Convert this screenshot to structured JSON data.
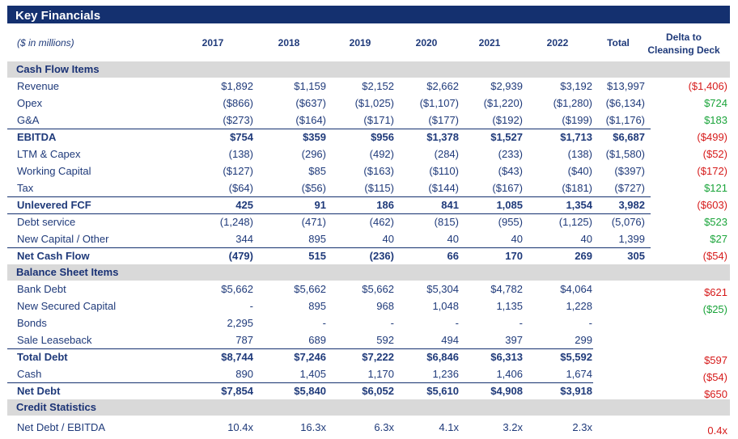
{
  "title": "Key Financials",
  "header": {
    "units": "($ in millions)",
    "years": [
      "2017",
      "2018",
      "2019",
      "2020",
      "2021",
      "2022"
    ],
    "total": "Total",
    "delta_line1": "Delta to",
    "delta_line2": "Cleansing Deck"
  },
  "cash_flow": {
    "heading": "Cash Flow Items",
    "rows": [
      {
        "label": "Revenue",
        "values": [
          "$1,892",
          "$1,159",
          "$2,152",
          "$2,662",
          "$2,939",
          "$3,192"
        ],
        "total": "$13,997",
        "delta": "($1,406)",
        "delta_sign": "neg"
      },
      {
        "label": "Opex",
        "values": [
          "($866)",
          "($637)",
          "($1,025)",
          "($1,107)",
          "($1,220)",
          "($1,280)"
        ],
        "total": "($6,134)",
        "delta": "$724",
        "delta_sign": "pos"
      },
      {
        "label": "G&A",
        "values": [
          "($273)",
          "($164)",
          "($171)",
          "($177)",
          "($192)",
          "($199)"
        ],
        "total": "($1,176)",
        "delta": "$183",
        "delta_sign": "pos"
      },
      {
        "label": "EBITDA",
        "values": [
          "$754",
          "$359",
          "$956",
          "$1,378",
          "$1,527",
          "$1,713"
        ],
        "total": "$6,687",
        "delta": "($499)",
        "delta_sign": "neg",
        "bold": true
      },
      {
        "label": "LTM & Capex",
        "values": [
          "(138)",
          "(296)",
          "(492)",
          "(284)",
          "(233)",
          "(138)"
        ],
        "total": "($1,580)",
        "delta": "($52)",
        "delta_sign": "neg"
      },
      {
        "label": "Working Capital",
        "values": [
          "($127)",
          "$85",
          "($163)",
          "($110)",
          "($43)",
          "($40)"
        ],
        "total": "($397)",
        "delta": "($172)",
        "delta_sign": "neg"
      },
      {
        "label": "Tax",
        "values": [
          "($64)",
          "($56)",
          "($115)",
          "($144)",
          "($167)",
          "($181)"
        ],
        "total": "($727)",
        "delta": "$121",
        "delta_sign": "pos"
      },
      {
        "label": "Unlevered FCF",
        "values": [
          "425",
          "91",
          "186",
          "841",
          "1,085",
          "1,354"
        ],
        "total": "3,982",
        "delta": "($603)",
        "delta_sign": "neg",
        "bold": true
      },
      {
        "label": "Debt service",
        "values": [
          "(1,248)",
          "(471)",
          "(462)",
          "(815)",
          "(955)",
          "(1,125)"
        ],
        "total": "(5,076)",
        "delta": "$523",
        "delta_sign": "pos"
      },
      {
        "label": "New Capital / Other",
        "values": [
          "344",
          "895",
          "40",
          "40",
          "40",
          "40"
        ],
        "total": "1,399",
        "delta": "$27",
        "delta_sign": "pos"
      },
      {
        "label": "Net Cash Flow",
        "values": [
          "(479)",
          "515",
          "(236)",
          "66",
          "170",
          "269"
        ],
        "total": "305",
        "delta": "($54)",
        "delta_sign": "neg",
        "bold": true
      }
    ]
  },
  "balance_sheet": {
    "heading": "Balance Sheet Items",
    "rows": [
      {
        "label": "Bank Debt",
        "values": [
          "$5,662",
          "$5,662",
          "$5,662",
          "$5,304",
          "$4,782",
          "$4,064"
        ],
        "total": "",
        "delta": "$621",
        "delta_sign": "neg"
      },
      {
        "label": "New Secured Capital",
        "values": [
          "-",
          "895",
          "968",
          "1,048",
          "1,135",
          "1,228"
        ],
        "total": "",
        "delta": "($25)",
        "delta_sign": "pos"
      },
      {
        "label": "Bonds",
        "values": [
          "2,295",
          "-",
          "-",
          "-",
          "-",
          "-"
        ],
        "total": "",
        "delta": "",
        "delta_sign": ""
      },
      {
        "label": "Sale Leaseback",
        "values": [
          "787",
          "689",
          "592",
          "494",
          "397",
          "299"
        ],
        "total": "",
        "delta": "",
        "delta_sign": ""
      },
      {
        "label": "Total Debt",
        "values": [
          "$8,744",
          "$7,246",
          "$7,222",
          "$6,846",
          "$6,313",
          "$5,592"
        ],
        "total": "",
        "delta": "$597",
        "delta_sign": "neg",
        "bold": true
      },
      {
        "label": "Cash",
        "values": [
          "890",
          "1,405",
          "1,170",
          "1,236",
          "1,406",
          "1,674"
        ],
        "total": "",
        "delta": "($54)",
        "delta_sign": "neg"
      },
      {
        "label": "Net Debt",
        "values": [
          "$7,854",
          "$5,840",
          "$6,052",
          "$5,610",
          "$4,908",
          "$3,918"
        ],
        "total": "",
        "delta": "$650",
        "delta_sign": "neg",
        "bold": true
      }
    ]
  },
  "credit_stats": {
    "heading": "Credit Statistics",
    "rows": [
      {
        "label": "Net Debt / EBITDA",
        "values": [
          "10.4x",
          "16.3x",
          "6.3x",
          "4.1x",
          "3.2x",
          "2.3x"
        ],
        "total": "",
        "delta": "0.4x",
        "delta_sign": "neg"
      }
    ]
  },
  "colors": {
    "navy": "#14306f",
    "text": "#1f3a7a",
    "positive": "#1aa43a",
    "negative": "#d61a1a",
    "section_bg": "#d9d9d9"
  }
}
